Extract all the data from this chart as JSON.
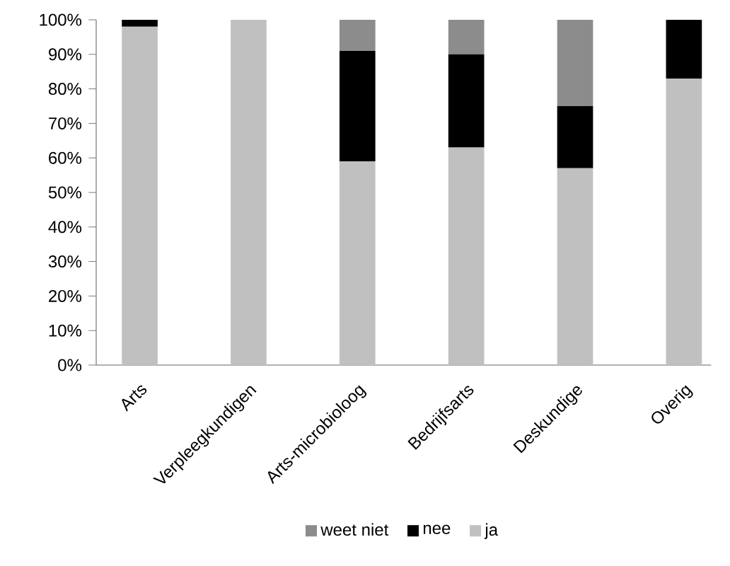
{
  "chart_data": {
    "type": "bar",
    "stacked": true,
    "legend": "bottom",
    "categories": [
      "Arts",
      "Verpleegkundigen",
      "Arts-microbioloog",
      "Bedrijfsarts",
      "Deskundige",
      "Overig"
    ],
    "series": [
      {
        "name": "ja",
        "color": "#c0c0c0",
        "values": [
          98,
          100,
          59,
          63,
          57,
          83
        ]
      },
      {
        "name": "nee",
        "color": "#000000",
        "values": [
          2,
          0,
          32,
          27,
          18,
          17
        ]
      },
      {
        "name": "weet niet",
        "color": "#8c8c8c",
        "values": [
          0,
          0,
          9,
          10,
          25,
          0
        ]
      }
    ],
    "ylim": [
      0,
      100
    ],
    "yticks": [
      {
        "value": 0,
        "label": "0%"
      },
      {
        "value": 10,
        "label": "10%"
      },
      {
        "value": 20,
        "label": "20%"
      },
      {
        "value": 30,
        "label": "30%"
      },
      {
        "value": 40,
        "label": "40%"
      },
      {
        "value": 50,
        "label": "50%"
      },
      {
        "value": 60,
        "label": "60%"
      },
      {
        "value": 70,
        "label": "70%"
      },
      {
        "value": 80,
        "label": "80%"
      },
      {
        "value": 90,
        "label": "90%"
      },
      {
        "value": 100,
        "label": "100%"
      }
    ]
  }
}
